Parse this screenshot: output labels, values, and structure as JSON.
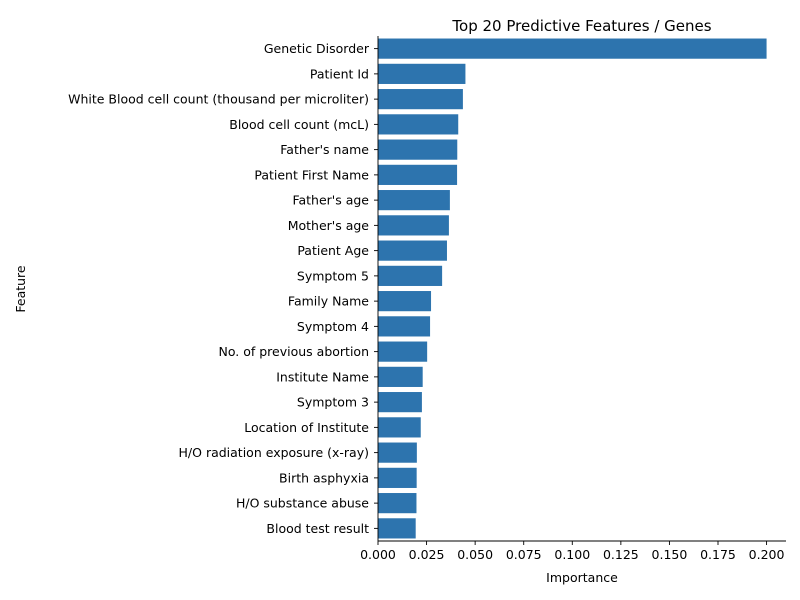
{
  "chart_data": {
    "type": "bar",
    "orientation": "horizontal",
    "title": "Top 20 Predictive Features / Genes",
    "xlabel": "Importance",
    "ylabel": "Feature",
    "xlim": [
      0,
      0.21
    ],
    "xticks": [
      "0.000",
      "0.025",
      "0.050",
      "0.075",
      "0.100",
      "0.125",
      "0.150",
      "0.175",
      "0.200"
    ],
    "xtick_values": [
      0,
      0.025,
      0.05,
      0.075,
      0.1,
      0.125,
      0.15,
      0.175,
      0.2
    ],
    "bar_color": "#2d74ae",
    "grid": false,
    "categories": [
      "Genetic Disorder",
      "Patient Id",
      "White Blood cell count (thousand per microliter)",
      "Blood cell count (mcL)",
      "Father's name",
      "Patient First Name",
      "Father's age",
      "Mother's age",
      "Patient Age",
      "Symptom 5",
      "Family Name",
      "Symptom 4",
      "No. of previous abortion",
      "Institute Name",
      "Symptom 3",
      "Location of Institute",
      "H/O radiation exposure (x-ray)",
      "Birth asphyxia",
      "H/O substance abuse",
      "Blood test result"
    ],
    "values": [
      0.2,
      0.045,
      0.0437,
      0.0413,
      0.0408,
      0.0407,
      0.037,
      0.0365,
      0.0355,
      0.033,
      0.0273,
      0.0268,
      0.0253,
      0.023,
      0.0226,
      0.022,
      0.02,
      0.0199,
      0.0198,
      0.0194
    ]
  }
}
